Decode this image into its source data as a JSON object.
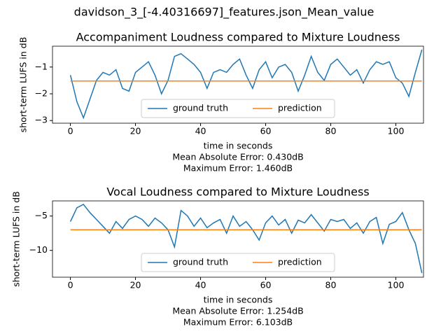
{
  "title": "davidson_3_[-4.40316697]_features.json_Mean_value",
  "chart_data": [
    {
      "type": "line",
      "title": "Accompaniment Loudness compared to Mixture Loudness",
      "x_label": "time in seconds",
      "y_label": "short-term LUFS in dB",
      "annotations": [
        "Mean Absolute Error: 0.430dB",
        "Maximum Error: 1.460dB"
      ],
      "x": [
        0,
        2,
        4,
        6,
        8,
        10,
        12,
        14,
        16,
        18,
        20,
        22,
        24,
        26,
        28,
        30,
        32,
        34,
        36,
        38,
        40,
        42,
        44,
        46,
        48,
        50,
        52,
        54,
        56,
        58,
        60,
        62,
        64,
        66,
        68,
        70,
        72,
        74,
        76,
        78,
        80,
        82,
        84,
        86,
        88,
        90,
        92,
        94,
        96,
        98,
        100,
        102,
        104,
        106,
        108
      ],
      "series": [
        {
          "name": "ground truth",
          "color": "#1f77b4",
          "values": [
            -1.3,
            -2.3,
            -2.9,
            -2.2,
            -1.5,
            -1.2,
            -1.3,
            -1.1,
            -1.8,
            -1.9,
            -1.2,
            -1.0,
            -0.8,
            -1.3,
            -2.0,
            -1.5,
            -0.6,
            -0.5,
            -0.7,
            -0.9,
            -1.2,
            -1.8,
            -1.2,
            -1.1,
            -1.2,
            -0.9,
            -0.7,
            -1.3,
            -1.8,
            -1.1,
            -0.8,
            -1.4,
            -1.0,
            -0.9,
            -1.2,
            -1.9,
            -1.3,
            -0.6,
            -1.2,
            -1.5,
            -0.9,
            -0.7,
            -1.0,
            -1.3,
            -1.1,
            -1.6,
            -1.1,
            -0.8,
            -0.9,
            -0.8,
            -1.4,
            -1.6,
            -2.1,
            -1.2,
            -0.35
          ]
        },
        {
          "name": "prediction",
          "color": "#ff7f0e",
          "values": [
            -1.52,
            -1.52,
            -1.52,
            -1.52,
            -1.52,
            -1.52,
            -1.52,
            -1.52,
            -1.52,
            -1.52,
            -1.52,
            -1.52,
            -1.52,
            -1.52,
            -1.52,
            -1.52,
            -1.52,
            -1.52,
            -1.52,
            -1.52,
            -1.52,
            -1.52,
            -1.52,
            -1.52,
            -1.52,
            -1.52,
            -1.52,
            -1.52,
            -1.52,
            -1.52,
            -1.52,
            -1.52,
            -1.52,
            -1.52,
            -1.52,
            -1.52,
            -1.52,
            -1.52,
            -1.52,
            -1.52,
            -1.52,
            -1.52,
            -1.52,
            -1.52,
            -1.52,
            -1.52,
            -1.52,
            -1.52,
            -1.52,
            -1.52,
            -1.52,
            -1.52,
            -1.52,
            -1.52,
            -1.52
          ]
        }
      ],
      "xlim": [
        -5.5,
        108.5
      ],
      "xticks": [
        0,
        20,
        40,
        60,
        80,
        100
      ],
      "ylim": [
        -3.1,
        -0.22
      ],
      "yticks": [
        {
          "value": -3,
          "label": "−3"
        },
        {
          "value": -2,
          "label": "−2"
        },
        {
          "value": -1,
          "label": "−1"
        }
      ],
      "legend": "lower center"
    },
    {
      "type": "line",
      "title": "Vocal Loudness compared to Mixture Loudness",
      "x_label": "time in seconds",
      "y_label": "short-term LUFS in dB",
      "annotations": [
        "Mean Absolute Error: 1.254dB",
        "Maximum Error: 6.103dB"
      ],
      "x": [
        0,
        2,
        4,
        6,
        8,
        10,
        12,
        14,
        16,
        18,
        20,
        22,
        24,
        26,
        28,
        30,
        32,
        34,
        36,
        38,
        40,
        42,
        44,
        46,
        48,
        50,
        52,
        54,
        56,
        58,
        60,
        62,
        64,
        66,
        68,
        70,
        72,
        74,
        76,
        78,
        80,
        82,
        84,
        86,
        88,
        90,
        92,
        94,
        96,
        98,
        100,
        102,
        104,
        106,
        108
      ],
      "series": [
        {
          "name": "ground truth",
          "color": "#1f77b4",
          "values": [
            -5.8,
            -3.8,
            -3.3,
            -4.5,
            -5.5,
            -6.5,
            -7.5,
            -5.8,
            -6.8,
            -5.5,
            -5.0,
            -5.5,
            -6.5,
            -5.3,
            -6.0,
            -7.0,
            -9.5,
            -4.2,
            -5.0,
            -6.5,
            -5.3,
            -6.7,
            -6.0,
            -5.5,
            -7.5,
            -5.0,
            -6.5,
            -5.8,
            -7.0,
            -8.5,
            -6.0,
            -5.0,
            -6.3,
            -5.5,
            -7.5,
            -5.6,
            -6.0,
            -4.8,
            -6.0,
            -7.2,
            -5.5,
            -5.8,
            -5.5,
            -6.8,
            -6.0,
            -7.5,
            -5.8,
            -5.2,
            -9.0,
            -6.2,
            -5.8,
            -4.5,
            -7.0,
            -9.0,
            -13.3
          ]
        },
        {
          "name": "prediction",
          "color": "#ff7f0e",
          "values": [
            -7.0,
            -7.0,
            -7.0,
            -7.0,
            -7.0,
            -7.0,
            -7.0,
            -7.0,
            -7.0,
            -7.0,
            -7.0,
            -7.0,
            -7.0,
            -7.0,
            -7.0,
            -7.0,
            -7.0,
            -7.0,
            -7.0,
            -7.0,
            -7.0,
            -7.0,
            -7.0,
            -7.0,
            -7.0,
            -7.0,
            -7.0,
            -7.0,
            -7.0,
            -7.0,
            -7.0,
            -7.0,
            -7.0,
            -7.0,
            -7.0,
            -7.0,
            -7.0,
            -7.0,
            -7.0,
            -7.0,
            -7.0,
            -7.0,
            -7.0,
            -7.0,
            -7.0,
            -7.0,
            -7.0,
            -7.0,
            -7.0,
            -7.0,
            -7.0,
            -7.0,
            -7.0,
            -7.0,
            -7.0
          ]
        }
      ],
      "xlim": [
        -5.5,
        108.5
      ],
      "xticks": [
        0,
        20,
        40,
        60,
        80,
        100
      ],
      "ylim": [
        -13.9,
        -2.8
      ],
      "yticks": [
        {
          "value": -10,
          "label": "−10"
        },
        {
          "value": -5,
          "label": "−5"
        }
      ],
      "legend": "lower center"
    }
  ]
}
